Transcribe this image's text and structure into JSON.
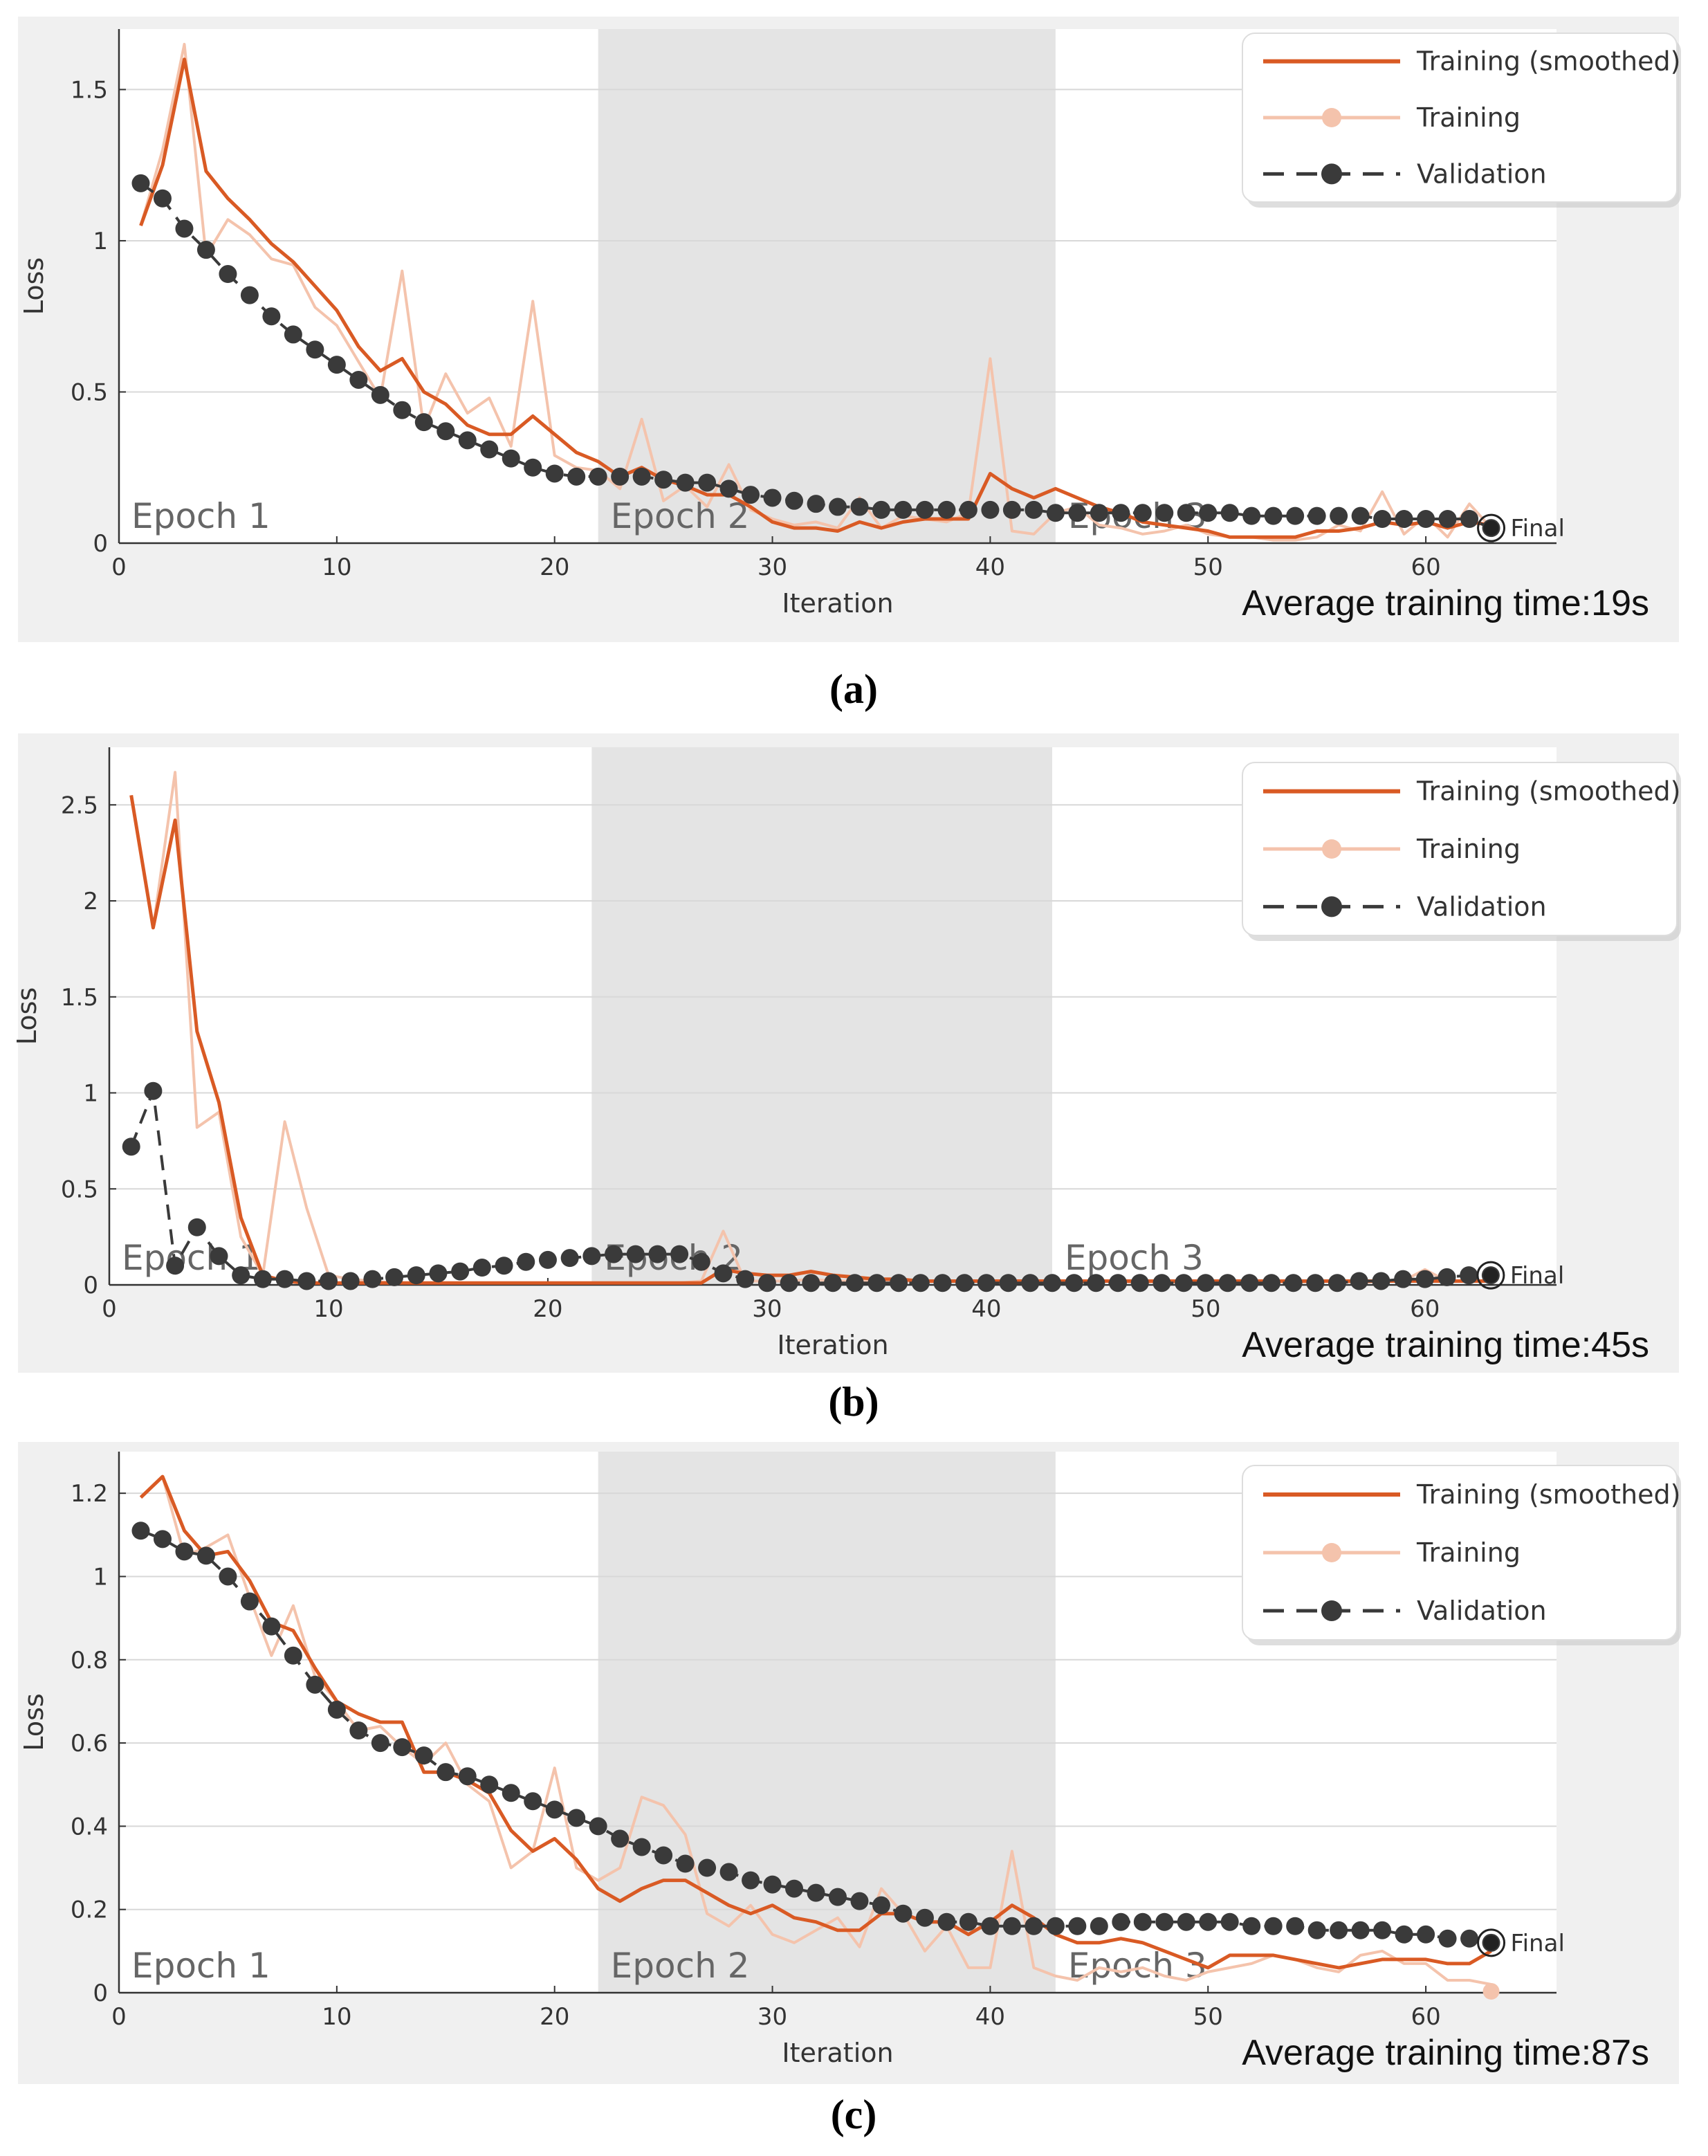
{
  "colors": {
    "smoothed": "#d95a24",
    "training": "#f4c3ac",
    "validation": "#3a3a3a",
    "epoch_shade": "#e4e4e4",
    "panel_bg": "#f0f0f0"
  },
  "chart_data": [
    {
      "type": "line",
      "panel_label": "(a)",
      "xlabel": "Iteration",
      "ylabel": "Loss",
      "xlim": [
        0,
        66
      ],
      "ylim": [
        0,
        1.7
      ],
      "xticks": [
        "0",
        "10",
        "20",
        "30",
        "40",
        "50",
        "60"
      ],
      "yticks": [
        "0",
        "0.5",
        "1",
        "1.5"
      ],
      "epochs": [
        {
          "label": "Epoch 1",
          "start": 0,
          "end": 22,
          "shaded": false
        },
        {
          "label": "Epoch 2",
          "start": 22,
          "end": 43,
          "shaded": true
        },
        {
          "label": "Epoch 3",
          "start": 43,
          "end": 66,
          "shaded": false
        }
      ],
      "legend": [
        "Training (smoothed)",
        "Training",
        "Validation"
      ],
      "final_label": "Final",
      "avg_time_label": "Average training time:19s",
      "x": [
        1,
        2,
        3,
        4,
        5,
        6,
        7,
        8,
        9,
        10,
        11,
        12,
        13,
        14,
        15,
        16,
        17,
        18,
        19,
        20,
        21,
        22,
        23,
        24,
        25,
        26,
        27,
        28,
        29,
        30,
        31,
        32,
        33,
        34,
        35,
        36,
        37,
        38,
        39,
        40,
        41,
        42,
        43,
        44,
        45,
        46,
        47,
        48,
        49,
        50,
        51,
        52,
        53,
        54,
        55,
        56,
        57,
        58,
        59,
        60,
        61,
        62,
        63
      ],
      "series": [
        {
          "name": "Training",
          "values": [
            1.05,
            1.3,
            1.65,
            0.95,
            1.07,
            1.02,
            0.94,
            0.92,
            0.78,
            0.72,
            0.6,
            0.48,
            0.9,
            0.38,
            0.56,
            0.43,
            0.48,
            0.32,
            0.8,
            0.29,
            0.25,
            0.24,
            0.18,
            0.41,
            0.14,
            0.19,
            0.12,
            0.26,
            0.11,
            0.08,
            0.06,
            0.07,
            0.05,
            0.15,
            0.05,
            0.09,
            0.08,
            0.07,
            0.1,
            0.61,
            0.04,
            0.03,
            0.1,
            0.12,
            0.06,
            0.05,
            0.03,
            0.04,
            0.06,
            0.03,
            0.02,
            0.02,
            0.01,
            0.01,
            0.02,
            0.06,
            0.04,
            0.17,
            0.03,
            0.09,
            0.02,
            0.13,
            0.05
          ]
        },
        {
          "name": "Training (smoothed)",
          "values": [
            1.05,
            1.25,
            1.6,
            1.23,
            1.14,
            1.07,
            0.99,
            0.93,
            0.85,
            0.77,
            0.65,
            0.57,
            0.61,
            0.5,
            0.46,
            0.39,
            0.36,
            0.36,
            0.42,
            0.36,
            0.3,
            0.27,
            0.22,
            0.25,
            0.21,
            0.19,
            0.16,
            0.16,
            0.12,
            0.07,
            0.05,
            0.05,
            0.04,
            0.07,
            0.05,
            0.07,
            0.08,
            0.08,
            0.08,
            0.23,
            0.18,
            0.15,
            0.18,
            0.15,
            0.12,
            0.1,
            0.07,
            0.06,
            0.05,
            0.04,
            0.02,
            0.02,
            0.02,
            0.02,
            0.04,
            0.04,
            0.05,
            0.07,
            0.06,
            0.07,
            0.05,
            0.07,
            0.06
          ]
        },
        {
          "name": "Validation",
          "values": [
            1.19,
            1.14,
            1.04,
            0.97,
            0.89,
            0.82,
            0.75,
            0.69,
            0.64,
            0.59,
            0.54,
            0.49,
            0.44,
            0.4,
            0.37,
            0.34,
            0.31,
            0.28,
            0.25,
            0.23,
            0.22,
            0.22,
            0.22,
            0.22,
            0.21,
            0.2,
            0.2,
            0.18,
            0.16,
            0.15,
            0.14,
            0.13,
            0.12,
            0.12,
            0.11,
            0.11,
            0.11,
            0.11,
            0.11,
            0.11,
            0.11,
            0.11,
            0.1,
            0.1,
            0.1,
            0.1,
            0.1,
            0.1,
            0.1,
            0.1,
            0.1,
            0.09,
            0.09,
            0.09,
            0.09,
            0.09,
            0.09,
            0.08,
            0.08,
            0.08,
            0.08,
            0.08,
            0.05
          ]
        }
      ]
    },
    {
      "type": "line",
      "panel_label": "(b)",
      "xlabel": "Iteration",
      "ylabel": "Loss",
      "xlim": [
        0,
        66
      ],
      "ylim": [
        0,
        2.8
      ],
      "xticks": [
        "0",
        "10",
        "20",
        "30",
        "40",
        "50",
        "60"
      ],
      "yticks": [
        "0",
        "0.5",
        "1",
        "1.5",
        "2",
        "2.5"
      ],
      "epochs": [
        {
          "label": "Epoch 1",
          "start": 0,
          "end": 22,
          "shaded": false
        },
        {
          "label": "Epoch 2",
          "start": 22,
          "end": 43,
          "shaded": true
        },
        {
          "label": "Epoch 3",
          "start": 43,
          "end": 66,
          "shaded": false
        }
      ],
      "legend": [
        "Training (smoothed)",
        "Training",
        "Validation"
      ],
      "final_label": "Final",
      "avg_time_label": "Average training time:45s",
      "x": [
        1,
        2,
        3,
        4,
        5,
        6,
        7,
        8,
        9,
        10,
        11,
        12,
        13,
        14,
        15,
        16,
        17,
        18,
        19,
        20,
        21,
        22,
        23,
        24,
        25,
        26,
        27,
        28,
        29,
        30,
        31,
        32,
        33,
        34,
        35,
        36,
        37,
        38,
        39,
        40,
        41,
        42,
        43,
        44,
        45,
        46,
        47,
        48,
        49,
        50,
        51,
        52,
        53,
        54,
        55,
        56,
        57,
        58,
        59,
        60,
        61,
        62,
        63
      ],
      "series": [
        {
          "name": "Training",
          "values": [
            2.55,
            1.86,
            2.67,
            0.82,
            0.9,
            0.25,
            0.05,
            0.85,
            0.4,
            0.05,
            0.03,
            0.02,
            0.01,
            0.01,
            0.01,
            0.01,
            0.01,
            0.01,
            0.01,
            0.01,
            0.01,
            0.01,
            0.01,
            0.01,
            0.01,
            0.01,
            0.02,
            0.28,
            0.02,
            0.02,
            0.02,
            0.03,
            0.02,
            0.02,
            0.02,
            0.02,
            0.02,
            0.02,
            0.02,
            0.02,
            0.02,
            0.02,
            0.02,
            0.01,
            0.02,
            0.02,
            0.01,
            0.02,
            0.01,
            0.02,
            0.02,
            0.01,
            0.02,
            0.01,
            0.02,
            0.02,
            0.01,
            0.02,
            0.02,
            0.08,
            0.02,
            0.02,
            0.02
          ]
        },
        {
          "name": "Training (smoothed)",
          "values": [
            2.55,
            1.86,
            2.42,
            1.32,
            0.95,
            0.35,
            0.05,
            0.02,
            0.01,
            0.01,
            0.01,
            0.01,
            0.01,
            0.01,
            0.01,
            0.01,
            0.01,
            0.01,
            0.01,
            0.01,
            0.01,
            0.01,
            0.01,
            0.01,
            0.01,
            0.01,
            0.01,
            0.08,
            0.06,
            0.05,
            0.05,
            0.07,
            0.05,
            0.04,
            0.03,
            0.03,
            0.02,
            0.02,
            0.02,
            0.02,
            0.02,
            0.02,
            0.02,
            0.02,
            0.02,
            0.02,
            0.02,
            0.02,
            0.02,
            0.02,
            0.02,
            0.02,
            0.02,
            0.02,
            0.02,
            0.02,
            0.02,
            0.02,
            0.02,
            0.02,
            0.02,
            0.02,
            0.02
          ]
        },
        {
          "name": "Validation",
          "values": [
            0.72,
            1.01,
            0.1,
            0.3,
            0.15,
            0.05,
            0.03,
            0.03,
            0.02,
            0.02,
            0.02,
            0.03,
            0.04,
            0.05,
            0.06,
            0.07,
            0.09,
            0.1,
            0.12,
            0.13,
            0.14,
            0.15,
            0.16,
            0.16,
            0.16,
            0.16,
            0.12,
            0.06,
            0.03,
            0.01,
            0.01,
            0.01,
            0.01,
            0.01,
            0.01,
            0.01,
            0.01,
            0.01,
            0.01,
            0.01,
            0.01,
            0.01,
            0.01,
            0.01,
            0.01,
            0.01,
            0.01,
            0.01,
            0.01,
            0.01,
            0.01,
            0.01,
            0.01,
            0.01,
            0.01,
            0.01,
            0.02,
            0.02,
            0.03,
            0.03,
            0.04,
            0.05,
            0.05
          ]
        }
      ]
    },
    {
      "type": "line",
      "panel_label": "(c)",
      "xlabel": "Iteration",
      "ylabel": "Loss",
      "xlim": [
        0,
        66
      ],
      "ylim": [
        0,
        1.3
      ],
      "xticks": [
        "0",
        "10",
        "20",
        "30",
        "40",
        "50",
        "60"
      ],
      "yticks": [
        "0",
        "0.2",
        "0.4",
        "0.6",
        "0.8",
        "1",
        "1.2"
      ],
      "epochs": [
        {
          "label": "Epoch 1",
          "start": 0,
          "end": 22,
          "shaded": false
        },
        {
          "label": "Epoch 2",
          "start": 22,
          "end": 43,
          "shaded": true
        },
        {
          "label": "Epoch 3",
          "start": 43,
          "end": 66,
          "shaded": false
        }
      ],
      "legend": [
        "Training (smoothed)",
        "Training",
        "Validation"
      ],
      "final_label": "Final",
      "avg_time_label": "Average training time:87s",
      "x": [
        1,
        2,
        3,
        4,
        5,
        6,
        7,
        8,
        9,
        10,
        11,
        12,
        13,
        14,
        15,
        16,
        17,
        18,
        19,
        20,
        21,
        22,
        23,
        24,
        25,
        26,
        27,
        28,
        29,
        30,
        31,
        32,
        33,
        34,
        35,
        36,
        37,
        38,
        39,
        40,
        41,
        42,
        43,
        44,
        45,
        46,
        47,
        48,
        49,
        50,
        51,
        52,
        53,
        54,
        55,
        56,
        57,
        58,
        59,
        60,
        61,
        62,
        63
      ],
      "series": [
        {
          "name": "Training",
          "values": [
            1.19,
            1.24,
            1.05,
            1.07,
            1.1,
            0.95,
            0.81,
            0.93,
            0.76,
            0.7,
            0.63,
            0.64,
            0.59,
            0.55,
            0.6,
            0.5,
            0.46,
            0.3,
            0.34,
            0.54,
            0.3,
            0.27,
            0.3,
            0.47,
            0.45,
            0.38,
            0.19,
            0.16,
            0.21,
            0.14,
            0.12,
            0.15,
            0.18,
            0.11,
            0.25,
            0.19,
            0.1,
            0.16,
            0.06,
            0.06,
            0.34,
            0.06,
            0.04,
            0.03,
            0.06,
            0.05,
            0.06,
            0.04,
            0.03,
            0.05,
            0.06,
            0.07,
            0.09,
            0.08,
            0.06,
            0.05,
            0.09,
            0.1,
            0.07,
            0.07,
            0.03,
            0.03,
            0.02
          ]
        },
        {
          "name": "Training (smoothed)",
          "values": [
            1.19,
            1.24,
            1.11,
            1.05,
            1.06,
            0.99,
            0.89,
            0.87,
            0.78,
            0.7,
            0.67,
            0.65,
            0.65,
            0.53,
            0.53,
            0.51,
            0.48,
            0.39,
            0.34,
            0.37,
            0.32,
            0.25,
            0.22,
            0.25,
            0.27,
            0.27,
            0.24,
            0.21,
            0.19,
            0.21,
            0.18,
            0.17,
            0.15,
            0.15,
            0.19,
            0.19,
            0.17,
            0.17,
            0.14,
            0.17,
            0.21,
            0.18,
            0.14,
            0.12,
            0.12,
            0.13,
            0.12,
            0.1,
            0.08,
            0.06,
            0.09,
            0.09,
            0.09,
            0.08,
            0.07,
            0.06,
            0.07,
            0.08,
            0.08,
            0.08,
            0.07,
            0.07,
            0.1
          ]
        },
        {
          "name": "Validation",
          "values": [
            1.11,
            1.09,
            1.06,
            1.05,
            1.0,
            0.94,
            0.88,
            0.81,
            0.74,
            0.68,
            0.63,
            0.6,
            0.59,
            0.57,
            0.53,
            0.52,
            0.5,
            0.48,
            0.46,
            0.44,
            0.42,
            0.4,
            0.37,
            0.35,
            0.33,
            0.31,
            0.3,
            0.29,
            0.27,
            0.26,
            0.25,
            0.24,
            0.23,
            0.22,
            0.21,
            0.19,
            0.18,
            0.17,
            0.17,
            0.16,
            0.16,
            0.16,
            0.16,
            0.16,
            0.16,
            0.17,
            0.17,
            0.17,
            0.17,
            0.17,
            0.17,
            0.16,
            0.16,
            0.16,
            0.15,
            0.15,
            0.15,
            0.15,
            0.14,
            0.14,
            0.13,
            0.13,
            0.12
          ]
        }
      ]
    }
  ]
}
